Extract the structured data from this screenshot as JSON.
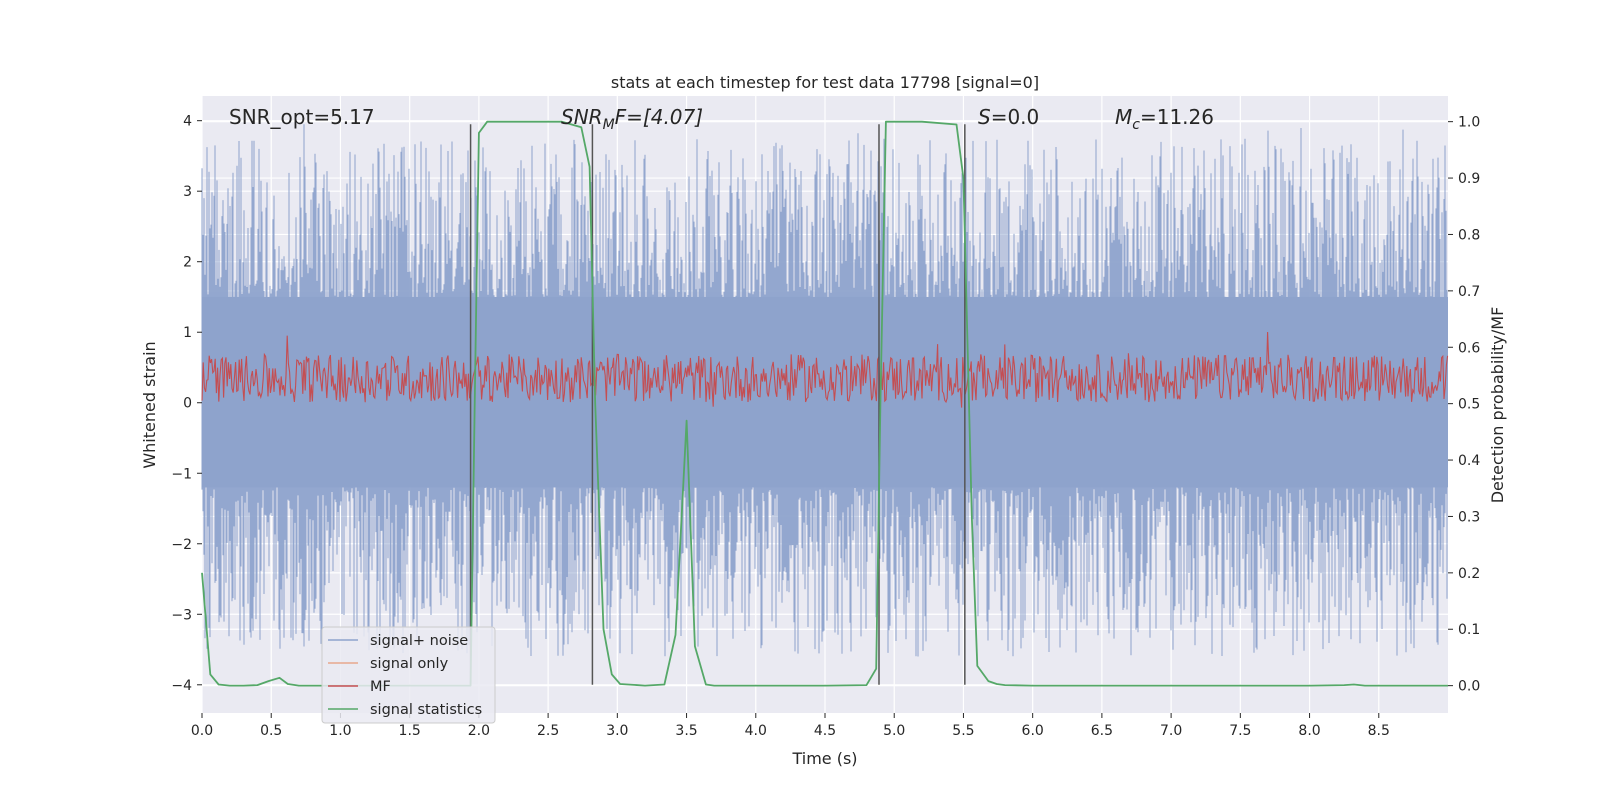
{
  "chart_data": {
    "type": "line",
    "title": "stats at each timestep for test data 17798 [signal=0]",
    "xlabel": "Time (s)",
    "ylabel": "Whitened strain",
    "y2label": "Detection probability/MF",
    "xlim": [
      0.0,
      9.0
    ],
    "ylim": [
      -4.4,
      4.35
    ],
    "y2lim": [
      -0.0485,
      1.0455
    ],
    "xticks": [
      0.0,
      0.5,
      1.0,
      1.5,
      2.0,
      2.5,
      3.0,
      3.5,
      4.0,
      4.5,
      5.0,
      5.5,
      6.0,
      6.5,
      7.0,
      7.5,
      8.0,
      8.5
    ],
    "xtick_labels": [
      "0.0",
      "0.5",
      "1.0",
      "1.5",
      "2.0",
      "2.5",
      "3.0",
      "3.5",
      "4.0",
      "4.5",
      "5.0",
      "5.5",
      "6.0",
      "6.5",
      "7.0",
      "7.5",
      "8.0",
      "8.5"
    ],
    "yticks": [
      4,
      3,
      2,
      1,
      0,
      -1,
      -2,
      -3,
      -4
    ],
    "ytick_labels": [
      "4",
      "3",
      "2",
      "1",
      "0",
      "−1",
      "−2",
      "−3",
      "−4"
    ],
    "y2ticks": [
      1.0,
      0.9,
      0.8,
      0.7,
      0.6,
      0.5,
      0.4,
      0.3,
      0.2,
      0.1,
      0.0
    ],
    "y2tick_labels": [
      "1.0",
      "0.9",
      "0.8",
      "0.7",
      "0.6",
      "0.5",
      "0.4",
      "0.3",
      "0.2",
      "0.1",
      "0.0"
    ],
    "grid": true,
    "legend_position": "lower-left",
    "annotations": {
      "snr_opt": "SNR_opt=5.17",
      "snr_mf_base": "SNR",
      "snr_mf_sub": "M",
      "snr_mf_rest": "F=[4.07]",
      "s_var": "S",
      "s_rest": "=0.0",
      "mc_base": "M",
      "mc_sub": "c",
      "mc_rest": "=11.26"
    },
    "vertical_lines": [
      1.94,
      2.82,
      4.89,
      5.51
    ],
    "vertical_line_range": [
      -4.0,
      3.95
    ],
    "series": [
      {
        "name": "signal+ noise",
        "color": "#8ea3cc",
        "description_values": {
          "envelope_top": [
            2.3,
            4.0
          ],
          "envelope_bottom": [
            -2.0,
            -4.1
          ]
        }
      },
      {
        "name": "signal only",
        "color": "#e8a88c",
        "values": []
      },
      {
        "name": "MF",
        "color": "#c44e52"
      },
      {
        "name": "signal statistics",
        "color": "#55a868",
        "x": [
          0.0,
          0.06,
          0.12,
          0.2,
          0.3,
          0.4,
          0.48,
          0.56,
          0.62,
          0.7,
          1.0,
          1.5,
          1.9,
          1.94,
          1.97,
          2.0,
          2.06,
          2.2,
          2.6,
          2.74,
          2.8,
          2.84,
          2.9,
          2.96,
          3.02,
          3.2,
          3.34,
          3.42,
          3.5,
          3.56,
          3.64,
          3.7,
          4.0,
          4.5,
          4.8,
          4.87,
          4.9,
          4.94,
          5.0,
          5.2,
          5.45,
          5.5,
          5.56,
          5.6,
          5.68,
          5.74,
          5.8,
          6.0,
          7.0,
          8.0,
          8.25,
          8.32,
          8.4,
          9.0
        ],
        "values": [
          0.2,
          0.02,
          0.002,
          0.0,
          0.0,
          0.001,
          0.008,
          0.014,
          0.003,
          0.0,
          0.0,
          0.0,
          0.0,
          0.0,
          0.5,
          0.98,
          1.0,
          1.0,
          1.0,
          0.99,
          0.92,
          0.5,
          0.1,
          0.02,
          0.003,
          0.0,
          0.002,
          0.09,
          0.47,
          0.07,
          0.002,
          0.0,
          0.0,
          0.0,
          0.001,
          0.03,
          0.5,
          1.0,
          1.0,
          1.0,
          0.995,
          0.9,
          0.3,
          0.035,
          0.008,
          0.003,
          0.001,
          0.0,
          0.0,
          0.0,
          0.001,
          0.002,
          0.0,
          0.0
        ]
      }
    ]
  }
}
